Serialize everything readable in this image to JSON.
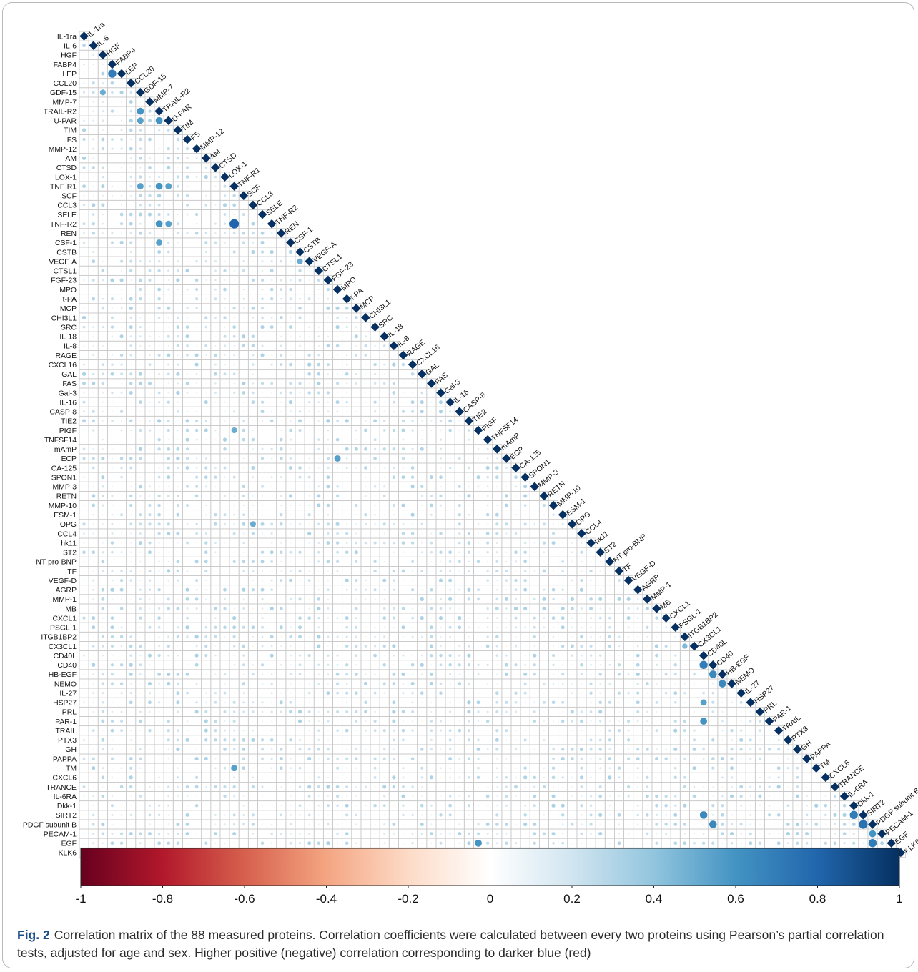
{
  "chart_data": {
    "type": "heatmap",
    "subtype": "lower-triangular correlation matrix",
    "variables": [
      "IL-1ra",
      "IL-6",
      "HGF",
      "FABP4",
      "LEP",
      "CCL20",
      "GDF-15",
      "MMP-7",
      "TRAIL-R2",
      "U-PAR",
      "TIM",
      "FS",
      "MMP-12",
      "AM",
      "CTSD",
      "LOX-1",
      "TNF-R1",
      "SCF",
      "CCL3",
      "SELE",
      "TNF-R2",
      "REN",
      "CSF-1",
      "CSTB",
      "VEGF-A",
      "CTSL1",
      "FGF-23",
      "MPO",
      "t-PA",
      "MCP",
      "CHI3L1",
      "SRC",
      "IL-18",
      "IL-8",
      "RAGE",
      "CXCL16",
      "GAL",
      "FAS",
      "Gal-3",
      "IL-16",
      "CASP-8",
      "TIE2",
      "PIGF",
      "TNFSF14",
      "mAmP",
      "ECP",
      "CA-125",
      "SPON1",
      "MMP-3",
      "RETN",
      "MMP-10",
      "ESM-1",
      "OPG",
      "CCL4",
      "hk11",
      "ST2",
      "NT-pro-BNP",
      "TF",
      "VEGF-D",
      "AGRP",
      "MMP-1",
      "MB",
      "CXCL1",
      "PSGL-1",
      "ITGB1BP2",
      "CX3CL1",
      "CD40L",
      "CD40",
      "HB-EGF",
      "NEMO",
      "IL-27",
      "HSP27",
      "PRL",
      "PAR-1",
      "TRAIL",
      "PTX3",
      "GH",
      "PAPPA",
      "TM",
      "CXCL6",
      "TRANCE",
      "IL-6RA",
      "Dkk-1",
      "SIRT2",
      "PDGF subunit B",
      "PECAM-1",
      "EGF",
      "KLK6"
    ],
    "strong_correlations": [
      [
        "FABP4",
        "LEP",
        0.7
      ],
      [
        "GDF-15",
        "HGF",
        0.5
      ],
      [
        "TRAIL-R2",
        "GDF-15",
        0.6
      ],
      [
        "U-PAR",
        "GDF-15",
        0.55
      ],
      [
        "U-PAR",
        "TRAIL-R2",
        0.6
      ],
      [
        "TNF-R1",
        "GDF-15",
        0.55
      ],
      [
        "TNF-R1",
        "TRAIL-R2",
        0.6
      ],
      [
        "TNF-R1",
        "U-PAR",
        0.55
      ],
      [
        "TNF-R2",
        "TNF-R1",
        0.8
      ],
      [
        "TNF-R2",
        "TRAIL-R2",
        0.6
      ],
      [
        "TNF-R2",
        "U-PAR",
        0.55
      ],
      [
        "CSF-1",
        "TRAIL-R2",
        0.55
      ],
      [
        "CSTB",
        "VEGF-A",
        0.5
      ],
      [
        "PIGF",
        "TNF-R1",
        0.5
      ],
      [
        "OPG",
        "CCL3",
        0.5
      ],
      [
        "ECP",
        "MPO",
        0.55
      ],
      [
        "CX3CL1",
        "ITGB1BP2",
        0.45
      ],
      [
        "CD40",
        "CD40L",
        0.7
      ],
      [
        "HB-EGF",
        "CD40",
        0.65
      ],
      [
        "NEMO",
        "HB-EGF",
        0.65
      ],
      [
        "HSP27",
        "CD40L",
        0.55
      ],
      [
        "PAR-1",
        "CD40L",
        0.6
      ],
      [
        "SIRT2",
        "Dkk-1",
        0.7
      ],
      [
        "PDGF subunit B",
        "SIRT2",
        0.75
      ],
      [
        "PECAM-1",
        "PDGF subunit B",
        0.6
      ],
      [
        "EGF",
        "PDGF subunit B",
        0.7
      ],
      [
        "SIRT2",
        "CD40L",
        0.65
      ],
      [
        "PDGF subunit B",
        "CD40",
        0.65
      ],
      [
        "EGF",
        "PIGF",
        0.6
      ],
      [
        "TM",
        "TNF-R1",
        0.55
      ]
    ],
    "diagonal_value": 1,
    "color_scale": {
      "min": -1,
      "max": 1,
      "ticks": [
        "-1",
        "-0.8",
        "-0.6",
        "-0.4",
        "-0.2",
        "0",
        "0.2",
        "0.4",
        "0.6",
        "0.8",
        "1"
      ],
      "colors": [
        "#67001f",
        "#b2182b",
        "#d6604d",
        "#f4a582",
        "#fddbc7",
        "#ffffff",
        "#d1e5f0",
        "#92c5de",
        "#4393c3",
        "#2166ac",
        "#053061"
      ]
    },
    "grid": true
  },
  "caption": {
    "fig_label": "Fig. 2",
    "text": "Correlation matrix of the 88 measured proteins. Correlation coefficients were calculated between every two proteins using Pearson’s partial correlation tests, adjusted for age and sex. Higher positive (negative) correlation corresponding to darker blue (red)"
  }
}
